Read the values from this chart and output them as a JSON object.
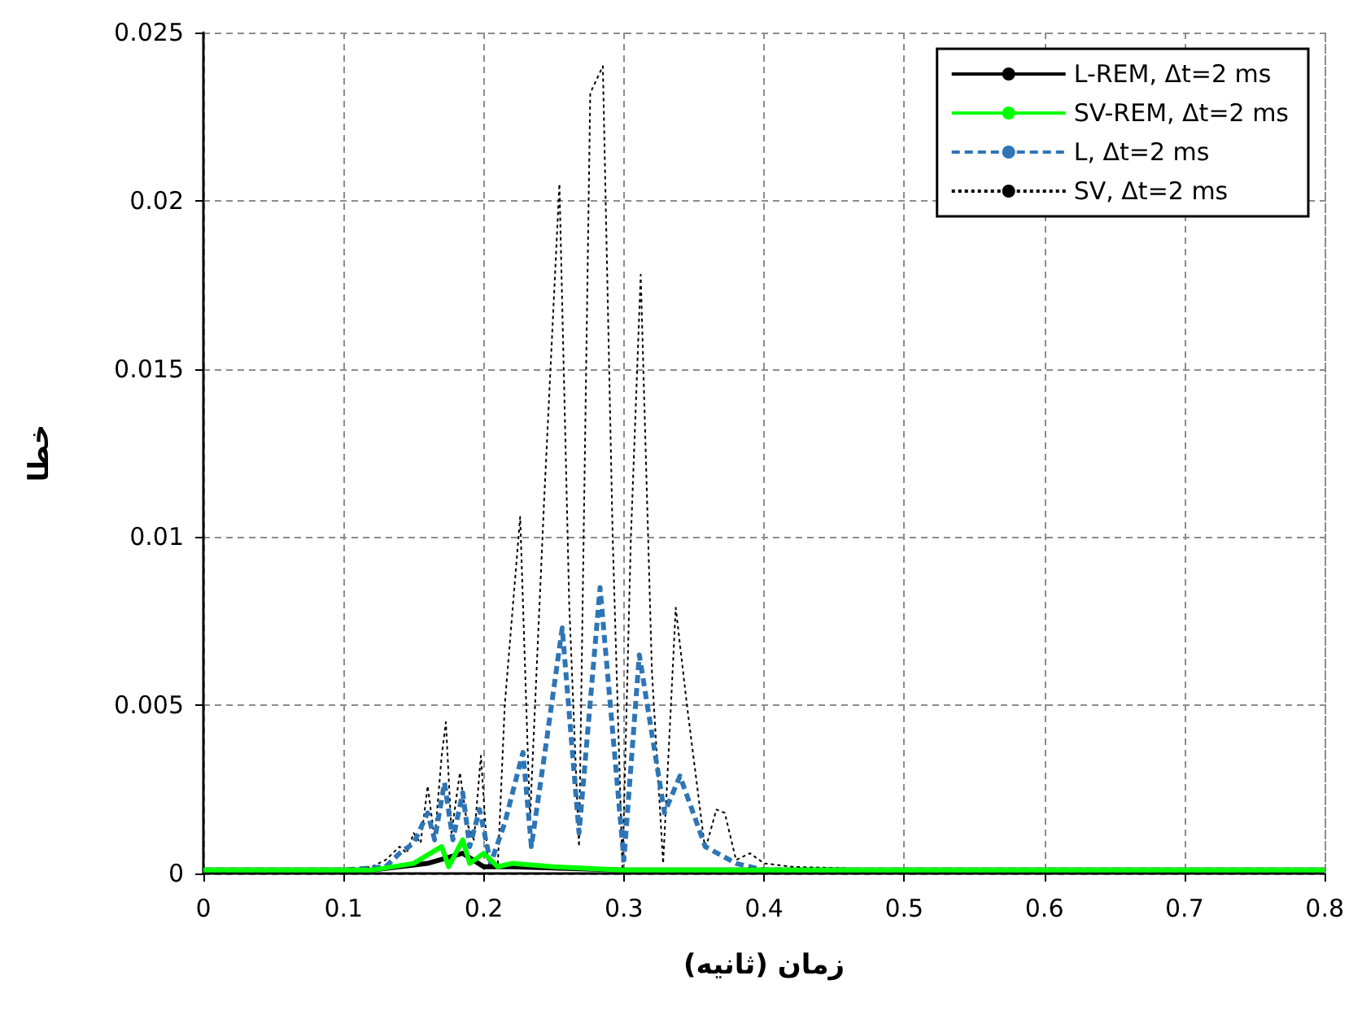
{
  "chart_data": {
    "type": "line",
    "xlabel": "زمان (ثانیه)",
    "ylabel": "خطا",
    "xlim": [
      0,
      0.8
    ],
    "xticks": [
      0,
      0.1,
      0.2,
      0.3,
      0.4,
      0.5,
      0.6,
      0.7,
      0.8
    ],
    "ylim": [
      0,
      0.025
    ],
    "yticks": [
      0,
      0.005,
      0.01,
      0.015,
      0.02,
      0.025
    ],
    "grid": true,
    "legend": "top right",
    "marker": "none",
    "series": [
      {
        "name": "L-REM, Δt=2 ms",
        "color": "#000000",
        "line_style": "solid",
        "x": [
          0,
          0.12,
          0.16,
          0.185,
          0.2,
          0.22,
          0.3,
          0.8
        ],
        "values": [
          0.0001,
          0.0001,
          0.0003,
          0.0006,
          0.0002,
          0.0002,
          0.0001,
          0.0001
        ]
      },
      {
        "name": "SV-REM, Δt=2 ms",
        "color": "#00ff00",
        "line_style": "solid",
        "x": [
          0,
          0.12,
          0.15,
          0.17,
          0.175,
          0.185,
          0.19,
          0.2,
          0.21,
          0.22,
          0.25,
          0.3,
          0.8
        ],
        "values": [
          0.0001,
          0.0001,
          0.0003,
          0.0008,
          0.0002,
          0.001,
          0.0003,
          0.0006,
          0.0002,
          0.0003,
          0.0002,
          0.0001,
          0.0001
        ]
      },
      {
        "name": "L, Δt=2 ms",
        "color": "#2e75b6",
        "line_style": "dashed",
        "x": [
          0,
          0.1,
          0.13,
          0.14,
          0.15,
          0.16,
          0.165,
          0.172,
          0.178,
          0.185,
          0.19,
          0.197,
          0.205,
          0.215,
          0.228,
          0.234,
          0.245,
          0.256,
          0.268,
          0.283,
          0.3,
          0.311,
          0.329,
          0.34,
          0.358,
          0.38,
          0.4,
          0.8
        ],
        "values": [
          0.0001,
          0.0001,
          0.0002,
          0.0006,
          0.0009,
          0.0018,
          0.001,
          0.0027,
          0.001,
          0.0024,
          0.0008,
          0.0019,
          0.0003,
          0.0015,
          0.0036,
          0.0008,
          0.004,
          0.0073,
          0.0012,
          0.0085,
          0.0004,
          0.0065,
          0.0018,
          0.0029,
          0.0008,
          0.0003,
          0.0001,
          0.0001
        ]
      },
      {
        "name": "SV, Δt=2 ms",
        "color": "#000000",
        "line_style": "dotted",
        "x": [
          0,
          0.05,
          0.1,
          0.12,
          0.13,
          0.14,
          0.145,
          0.15,
          0.155,
          0.16,
          0.165,
          0.17,
          0.173,
          0.177,
          0.183,
          0.188,
          0.193,
          0.198,
          0.203,
          0.21,
          0.215,
          0.226,
          0.233,
          0.243,
          0.254,
          0.261,
          0.268,
          0.276,
          0.285,
          0.292,
          0.299,
          0.305,
          0.312,
          0.32,
          0.328,
          0.337,
          0.345,
          0.358,
          0.366,
          0.372,
          0.38,
          0.39,
          0.4,
          0.42,
          0.5,
          0.6,
          0.8
        ],
        "values": [
          0,
          0.0001,
          0.0001,
          0.0002,
          0.0004,
          0.0008,
          0.0006,
          0.0012,
          0.0009,
          0.0026,
          0.001,
          0.0035,
          0.0045,
          0.0012,
          0.003,
          0.0015,
          0.001,
          0.0035,
          0.0003,
          0.0002,
          0.005,
          0.0106,
          0.0016,
          0.011,
          0.0205,
          0.008,
          0.0008,
          0.0232,
          0.024,
          0.01,
          0.0001,
          0.01,
          0.0178,
          0.006,
          0.0003,
          0.0079,
          0.005,
          0.0007,
          0.0019,
          0.0018,
          0.0004,
          0.0006,
          0.0003,
          0.0002,
          0.0001,
          0.0001,
          0.0001
        ]
      }
    ]
  }
}
